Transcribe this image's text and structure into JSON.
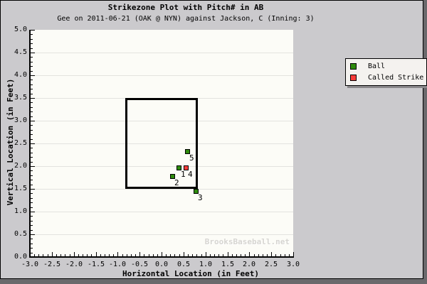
{
  "header": {
    "title": "Strikezone Plot with Pitch# in AB",
    "subtitle": "Gee on 2011-06-21 (OAK @ NYN) against Jackson, C (Inning: 3)"
  },
  "watermark_text": "BrooksBaseball.net",
  "legend": {
    "items": [
      {
        "label": "Ball",
        "color": "#2e8b0d"
      },
      {
        "label": "Called Strike",
        "color": "#f93d3b"
      }
    ]
  },
  "chart_data": {
    "type": "scatter",
    "title": "Strikezone Plot with Pitch# in AB",
    "subtitle": "Gee on 2011-06-21 (OAK @ NYN) against Jackson, C (Inning: 3)",
    "xlabel": "Horizontal Location (in Feet)",
    "ylabel": "Vertical Location (in Feet)",
    "xlim": [
      -3.0,
      3.0
    ],
    "ylim": [
      0.0,
      5.0
    ],
    "major_tick_step": 0.5,
    "minor_tick_step": 0.1,
    "grid": "horizontal gridlines at major ticks only",
    "legend_position": "top-right",
    "strikezone_rect": {
      "x_left": -0.83,
      "x_right": 0.83,
      "y_bottom": 1.5,
      "y_top": 3.5
    },
    "series": [
      {
        "name": "Ball",
        "color": "#2e8b0d",
        "points": [
          {
            "pitch_number": 1,
            "x": 0.39,
            "y": 1.97
          },
          {
            "pitch_number": 2,
            "x": 0.25,
            "y": 1.78
          },
          {
            "pitch_number": 3,
            "x": 0.78,
            "y": 1.46
          },
          {
            "pitch_number": 5,
            "x": 0.59,
            "y": 2.33
          }
        ]
      },
      {
        "name": "Called Strike",
        "color": "#f93d3b",
        "points": [
          {
            "pitch_number": 4,
            "x": 0.55,
            "y": 1.97
          }
        ]
      }
    ]
  },
  "colors": {
    "canvas_bg": "#cbcacd",
    "frame_shadow": "#6a696c",
    "plot_bg": "#fcfcf7",
    "gridline": "#e3e3df",
    "axis": "#000000",
    "legend_bg": "#f4f2ef",
    "watermark": "#d6d5d1"
  }
}
